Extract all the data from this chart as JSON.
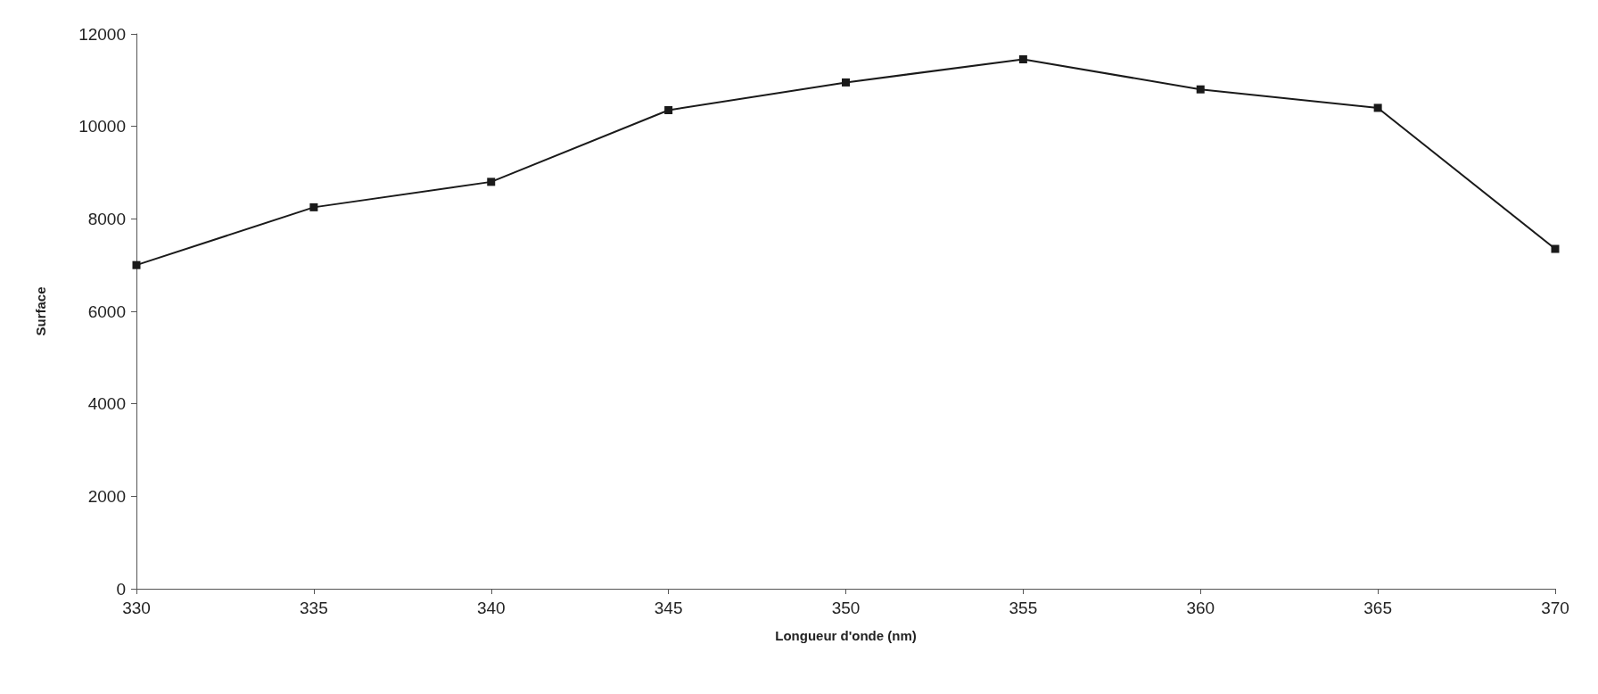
{
  "chart_data": {
    "type": "line",
    "xlabel": "Longueur d'onde (nm)",
    "ylabel": "Surface",
    "x": [
      330,
      335,
      340,
      345,
      350,
      355,
      360,
      365,
      370
    ],
    "series": [
      {
        "color": "#1a1a1a",
        "values": [
          7000,
          8250,
          8800,
          10350,
          10950,
          11450,
          10800,
          10400,
          7350
        ]
      }
    ],
    "xlim": [
      330,
      370
    ],
    "xticks": [
      330,
      335,
      340,
      345,
      350,
      355,
      360,
      365,
      370
    ],
    "ylim": [
      0,
      12000
    ],
    "yticks": [
      0,
      2000,
      4000,
      6000,
      8000,
      10000,
      12000
    ],
    "grid": false,
    "marker": "square",
    "line_style": "solid"
  }
}
